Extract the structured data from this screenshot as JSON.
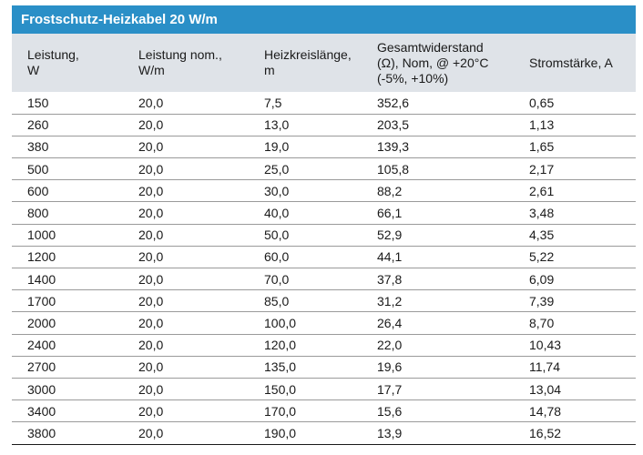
{
  "title": "Frostschutz-Heizkabel 20 W/m",
  "headers": [
    [
      "Leistung,",
      "W"
    ],
    [
      "Leistung nom.,",
      "W/m"
    ],
    [
      "Heizkreislänge,",
      "m"
    ],
    [
      "Gesamtwiderstand",
      "(Ω), Nom, @ +20°C",
      "(-5%, +10%)"
    ],
    [
      "Stromstärke, A"
    ]
  ],
  "rows": [
    [
      "150",
      "20,0",
      "7,5",
      "352,6",
      "0,65"
    ],
    [
      "260",
      "20,0",
      "13,0",
      "203,5",
      "1,13"
    ],
    [
      "380",
      "20,0",
      "19,0",
      "139,3",
      "1,65"
    ],
    [
      "500",
      "20,0",
      "25,0",
      "105,8",
      "2,17"
    ],
    [
      "600",
      "20,0",
      "30,0",
      "88,2",
      "2,61"
    ],
    [
      "800",
      "20,0",
      "40,0",
      "66,1",
      "3,48"
    ],
    [
      "1000",
      "20,0",
      "50,0",
      "52,9",
      "4,35"
    ],
    [
      "1200",
      "20,0",
      "60,0",
      "44,1",
      "5,22"
    ],
    [
      "1400",
      "20,0",
      "70,0",
      "37,8",
      "6,09"
    ],
    [
      "1700",
      "20,0",
      "85,0",
      "31,2",
      "7,39"
    ],
    [
      "2000",
      "20,0",
      "100,0",
      "26,4",
      "8,70"
    ],
    [
      "2400",
      "20,0",
      "120,0",
      "22,0",
      "10,43"
    ],
    [
      "2700",
      "20,0",
      "135,0",
      "19,6",
      "11,74"
    ],
    [
      "3000",
      "20,0",
      "150,0",
      "17,7",
      "13,04"
    ],
    [
      "3400",
      "20,0",
      "170,0",
      "15,6",
      "14,78"
    ],
    [
      "3800",
      "20,0",
      "190,0",
      "13,9",
      "16,52"
    ]
  ],
  "colors": {
    "title_bg": "#2a8fc7",
    "header_bg": "#dfe3e8"
  }
}
